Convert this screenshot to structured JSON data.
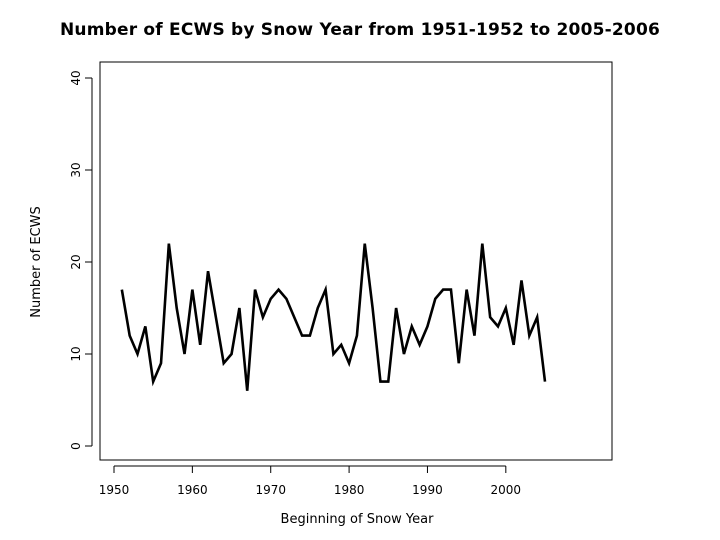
{
  "chart_data": {
    "type": "line",
    "title": "Number of ECWS by Snow Year from 1951-1952 to 2005-2006",
    "xlabel": "Beginning of Snow Year",
    "ylabel": "Number of ECWS",
    "xlim": [
      1950,
      2005
    ],
    "ylim": [
      0,
      40
    ],
    "x_ticks": [
      1950,
      1960,
      1970,
      1980,
      1990,
      2000
    ],
    "y_ticks": [
      0,
      10,
      20,
      30,
      40
    ],
    "grid": false,
    "series": [
      {
        "x": [
          1951,
          1952,
          1953,
          1954,
          1955,
          1956,
          1957,
          1958,
          1959,
          1960,
          1961,
          1962,
          1963,
          1964,
          1965,
          1966,
          1967,
          1968,
          1969,
          1970,
          1971,
          1972,
          1973,
          1974,
          1975,
          1976,
          1977,
          1978,
          1979,
          1980,
          1981,
          1982,
          1983,
          1984,
          1985,
          1986,
          1987,
          1988,
          1989,
          1990,
          1991,
          1992,
          1993,
          1994,
          1995,
          1996,
          1997,
          1998,
          1999,
          2000,
          2001,
          2002,
          2003,
          2004,
          2005
        ],
        "y": [
          17,
          12,
          10,
          13,
          7,
          9,
          22,
          15,
          10,
          17,
          11,
          19,
          14,
          9,
          10,
          15,
          6,
          17,
          14,
          16,
          17,
          16,
          14,
          12,
          12,
          15,
          17,
          10,
          11,
          9,
          12,
          22,
          15,
          7,
          7,
          15,
          10,
          13,
          11,
          13,
          16,
          17,
          17,
          9,
          17,
          12,
          22,
          14,
          13,
          15,
          11,
          18,
          12,
          14,
          7
        ]
      }
    ]
  }
}
